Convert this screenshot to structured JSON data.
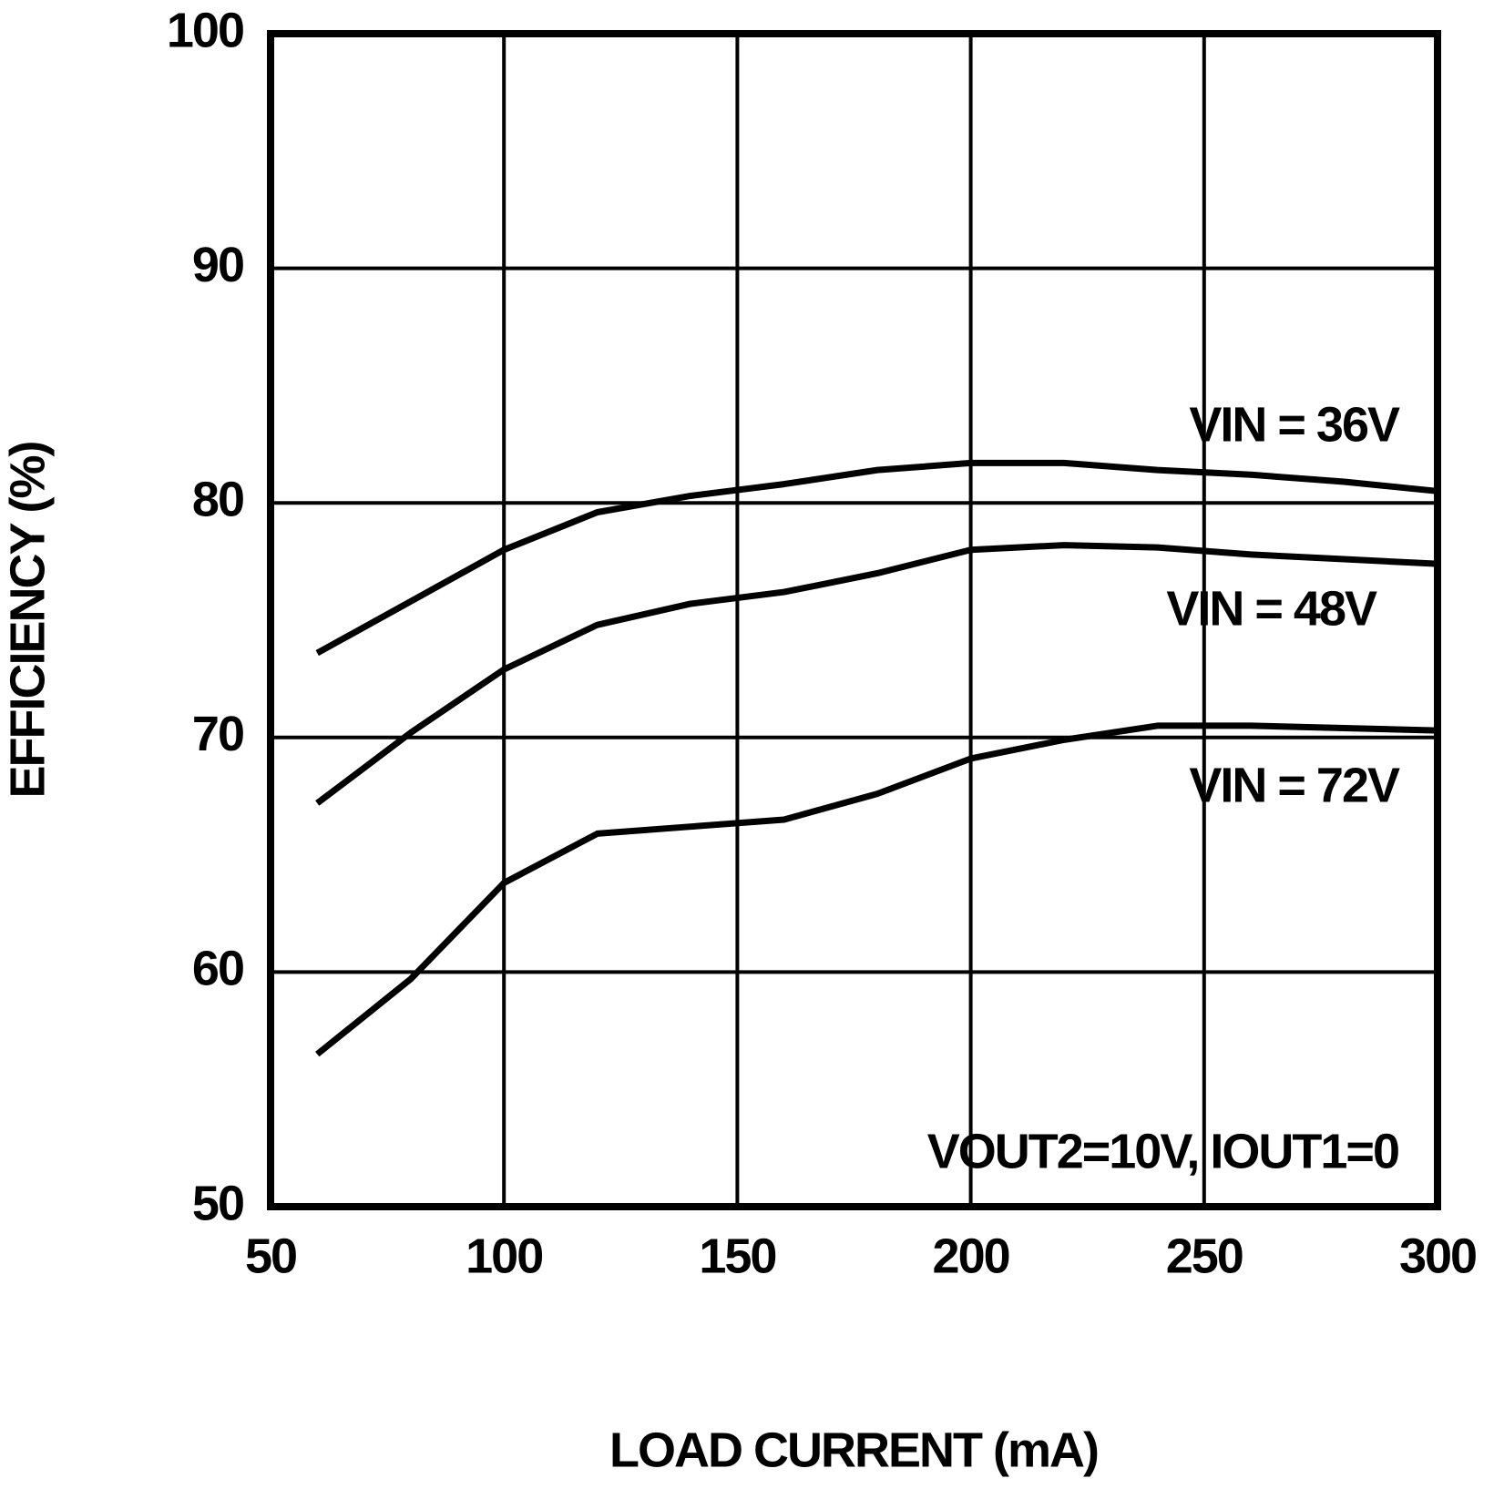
{
  "chart_data": {
    "type": "line",
    "x_label": "LOAD CURRENT (mA)",
    "y_label": "EFFICIENCY (%)",
    "annotation": "VOUT2=10V, IOUT1=0",
    "x": [
      60,
      80,
      100,
      120,
      140,
      160,
      180,
      200,
      220,
      240,
      260,
      280,
      300
    ],
    "series": [
      {
        "name": "VIN = 36V",
        "color": "#000000",
        "values": [
          73.6,
          75.8,
          78.0,
          79.6,
          80.3,
          80.8,
          81.4,
          81.7,
          81.7,
          81.4,
          81.2,
          80.9,
          80.5
        ]
      },
      {
        "name": "VIN = 48V",
        "color": "#000000",
        "values": [
          67.2,
          70.2,
          72.9,
          74.8,
          75.7,
          76.2,
          77.0,
          78.0,
          78.2,
          78.1,
          77.8,
          77.6,
          77.4
        ]
      },
      {
        "name": "VIN = 72V",
        "color": "#000000",
        "values": [
          56.5,
          59.7,
          63.8,
          65.9,
          66.2,
          66.5,
          67.6,
          69.1,
          69.9,
          70.5,
          70.5,
          70.4,
          70.3
        ]
      }
    ],
    "xlim": [
      50,
      300
    ],
    "xticks": [
      50,
      100,
      150,
      200,
      250,
      300
    ],
    "ylim": [
      50,
      100
    ],
    "yticks": [
      50,
      60,
      70,
      80,
      90,
      100
    ],
    "grid": true
  }
}
